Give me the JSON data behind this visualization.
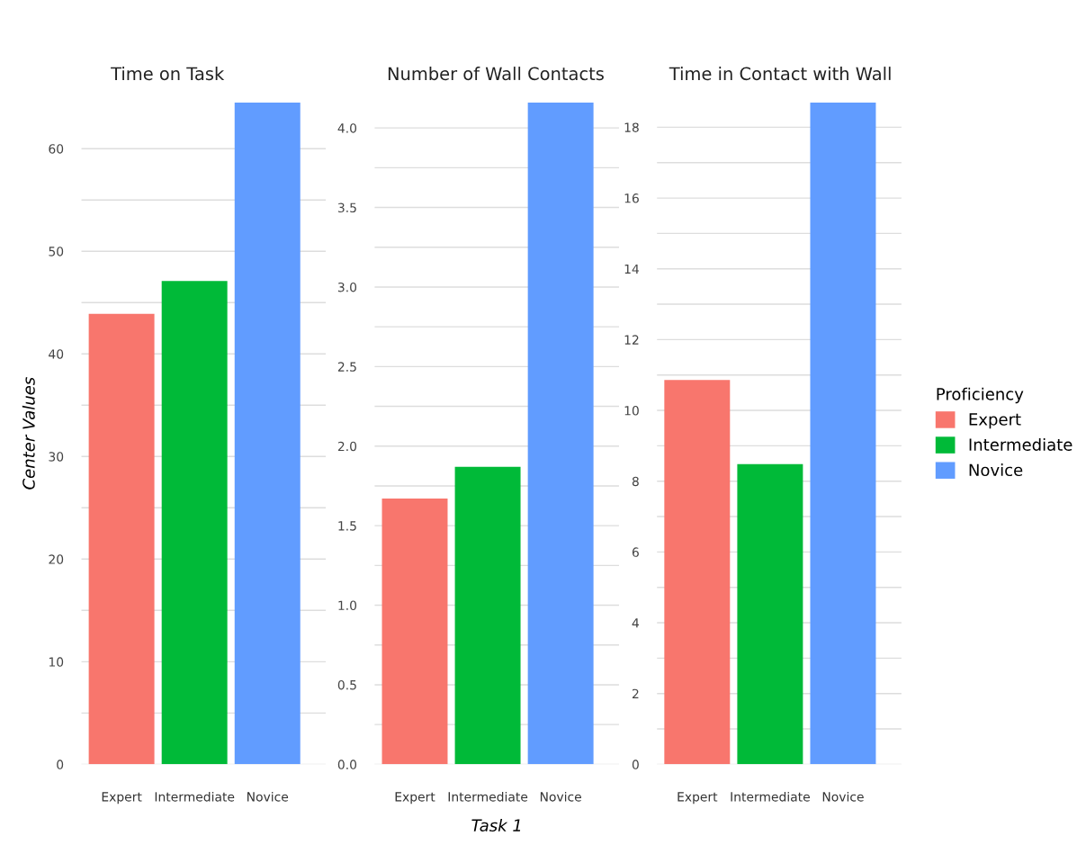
{
  "chart_data": [
    {
      "type": "bar",
      "title": "Time on Task",
      "ylabel": "Center Values",
      "categories": [
        "Expert",
        "Intermediate",
        "Novice"
      ],
      "series": [
        {
          "color": "#f8766d",
          "values": [
            43.9,
            null,
            null
          ]
        },
        {
          "color": "#00ba38",
          "values": [
            null,
            47.1,
            null
          ]
        },
        {
          "color": "#619cff",
          "values": [
            null,
            null,
            64.5
          ]
        }
      ],
      "ylim": [
        0,
        64.5
      ],
      "yticks": [
        0,
        {
          "value": 5,
          "label": null
        },
        10,
        {
          "value": 15,
          "label": null
        },
        20,
        {
          "value": 25,
          "label": null
        },
        30,
        {
          "value": 35,
          "label": null
        },
        40,
        {
          "value": 45,
          "label": null
        },
        50,
        {
          "value": 55,
          "label": null
        },
        60
      ],
      "grid": "y"
    },
    {
      "type": "bar",
      "title": "Number of Wall Contacts",
      "xlabel": "Task 1",
      "categories": [
        "Expert",
        "Intermediate",
        "Novice"
      ],
      "series": [
        {
          "color": "#f8766d",
          "values": [
            1.67,
            null,
            null
          ]
        },
        {
          "color": "#00ba38",
          "values": [
            null,
            1.87,
            null
          ]
        },
        {
          "color": "#619cff",
          "values": [
            null,
            null,
            4.16
          ]
        }
      ],
      "ylim": [
        0,
        4.16
      ],
      "yticks": [
        {
          "value": 0,
          "label": "0.0"
        },
        {
          "value": 0.25,
          "label": null
        },
        0.5,
        {
          "value": 0.75,
          "label": null
        },
        {
          "value": 1,
          "label": "1.0"
        },
        {
          "value": 1.25,
          "label": null
        },
        1.5,
        {
          "value": 1.75,
          "label": null
        },
        {
          "value": 2,
          "label": "2.0"
        },
        {
          "value": 2.25,
          "label": null
        },
        2.5,
        {
          "value": 2.75,
          "label": null
        },
        {
          "value": 3,
          "label": "3.0"
        },
        {
          "value": 3.25,
          "label": null
        },
        3.5,
        {
          "value": 3.75,
          "label": null
        },
        {
          "value": 4,
          "label": "4.0"
        }
      ],
      "grid": "y"
    },
    {
      "type": "bar",
      "title": "Time in Contact with Wall",
      "legend_title": "Proficiency",
      "legend": "right",
      "categories": [
        "Expert",
        "Intermediate",
        "Novice"
      ],
      "series": [
        {
          "name": "Expert",
          "color": "#f8766d",
          "values": [
            10.86,
            null,
            null
          ]
        },
        {
          "name": "Intermediate",
          "color": "#00ba38",
          "values": [
            null,
            8.48,
            null
          ]
        },
        {
          "name": "Novice",
          "color": "#619cff",
          "values": [
            null,
            null,
            18.7
          ]
        }
      ],
      "ylim": [
        0,
        18.7
      ],
      "yticks": [
        0,
        {
          "value": 1,
          "label": null
        },
        2,
        {
          "value": 3,
          "label": null
        },
        4,
        {
          "value": 5,
          "label": null
        },
        6,
        {
          "value": 7,
          "label": null
        },
        8,
        {
          "value": 9,
          "label": null
        },
        10,
        {
          "value": 11,
          "label": null
        },
        12,
        {
          "value": 13,
          "label": null
        },
        14,
        {
          "value": 15,
          "label": null
        },
        16,
        {
          "value": 17,
          "label": null
        },
        18
      ],
      "grid": "y"
    }
  ]
}
